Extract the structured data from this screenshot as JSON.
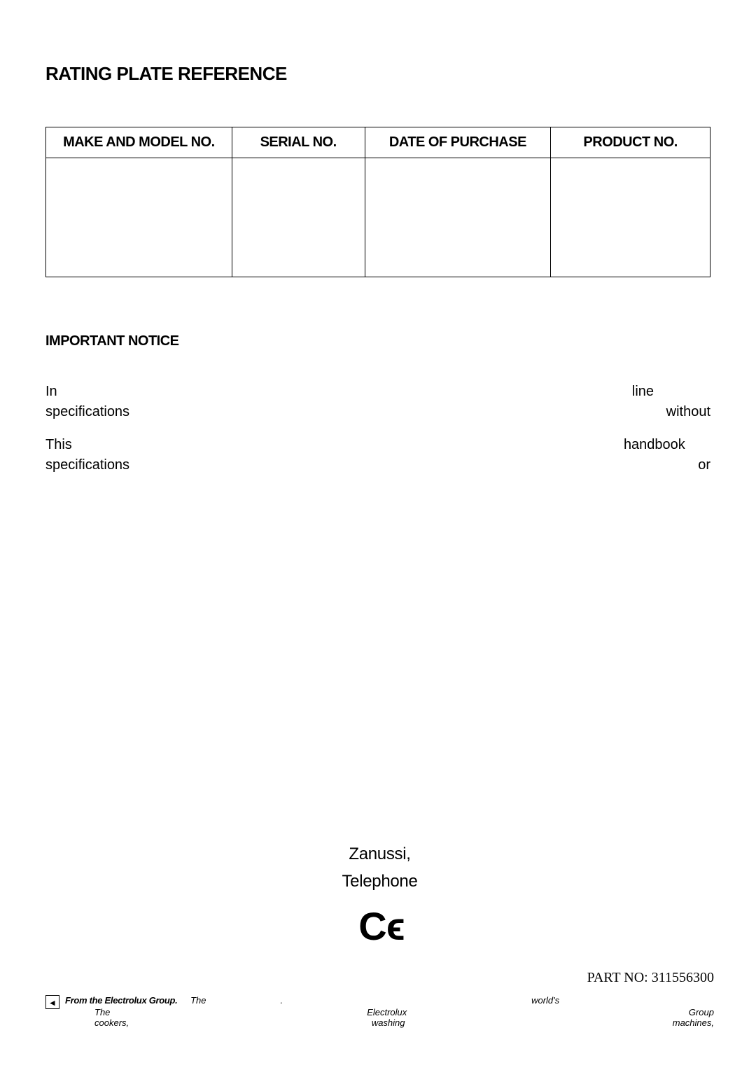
{
  "heading": "RATING PLATE REFERENCE",
  "table": {
    "columns": [
      "MAKE AND MODEL NO.",
      "SERIAL NO.",
      "DATE OF PURCHASE",
      "PRODUCT NO."
    ],
    "col_classes": [
      "col-make",
      "col-serial",
      "col-date",
      "col-product"
    ]
  },
  "notice": {
    "title": "IMPORTANT NOTICE",
    "para1_line1_a": "In",
    "para1_line1_b": "line",
    "para1_line2_a": "specifications",
    "para1_line2_b": "without",
    "para2_line1_a": "This",
    "para2_line1_b": "handbook",
    "para2_line2_a": "specifications",
    "para2_line2_b": "or"
  },
  "company": {
    "line1": "Zanussi,",
    "line2": "Telephone"
  },
  "ce_text": "C ϵ",
  "part_no_label": "PART NO:  ",
  "part_no_value": "311556300",
  "tagline": {
    "lead": "From the Electrolux Group.",
    "row1_a": "The",
    "row1_mid": ".",
    "row1_b": "world's",
    "row2_a": "The",
    "row2_b": "Electrolux",
    "row2_c": "Group",
    "row3_a": "cookers,",
    "row3_b": "washing",
    "row3_c": "machines,"
  },
  "colors": {
    "text": "#000000",
    "background": "#ffffff",
    "border": "#000000"
  }
}
